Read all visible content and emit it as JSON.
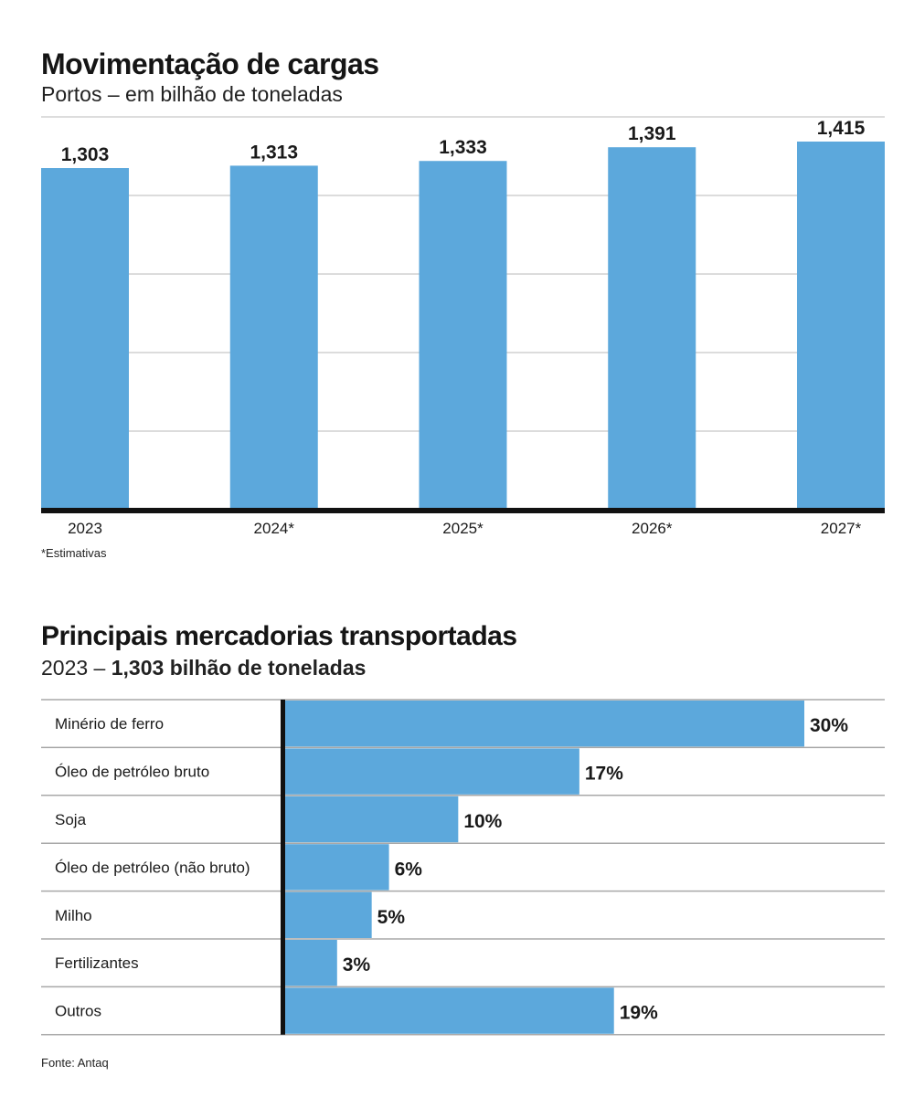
{
  "colors": {
    "bar": "#5ca8dc",
    "axis": "#111111",
    "grid": "#d0d0d0",
    "text": "#1a1a1a"
  },
  "chart_data": [
    {
      "type": "bar",
      "title": "Movimentação de cargas",
      "subtitle": "Portos – em bilhão de toneladas",
      "categories": [
        "2023",
        "2024*",
        "2025*",
        "2026*",
        "2027*"
      ],
      "values": [
        1.303,
        1.313,
        1.333,
        1.391,
        1.415
      ],
      "value_labels": [
        "1,303",
        "1,313",
        "1,333",
        "1,391",
        "1,415"
      ],
      "xlabel": "",
      "ylabel": "",
      "ylim": [
        0,
        1.5
      ],
      "grid": true,
      "footnote": "*Estimativas"
    },
    {
      "type": "bar",
      "orientation": "horizontal",
      "title": "Principais mercadorias transportadas",
      "subtitle_prefix": "2023 – ",
      "subtitle_bold": "1,303 bilhão de toneladas",
      "categories": [
        "Minério de ferro",
        "Óleo de petróleo bruto",
        "Soja",
        "Óleo de petróleo (não bruto)",
        "Milho",
        "Fertilizantes",
        "Outros"
      ],
      "values": [
        30,
        17,
        10,
        6,
        5,
        3,
        19
      ],
      "value_labels": [
        "30%",
        "17%",
        "10%",
        "6%",
        "5%",
        "3%",
        "19%"
      ],
      "unit": "%",
      "xlim": [
        0,
        30
      ],
      "footnote": "Fonte: Antaq"
    }
  ]
}
